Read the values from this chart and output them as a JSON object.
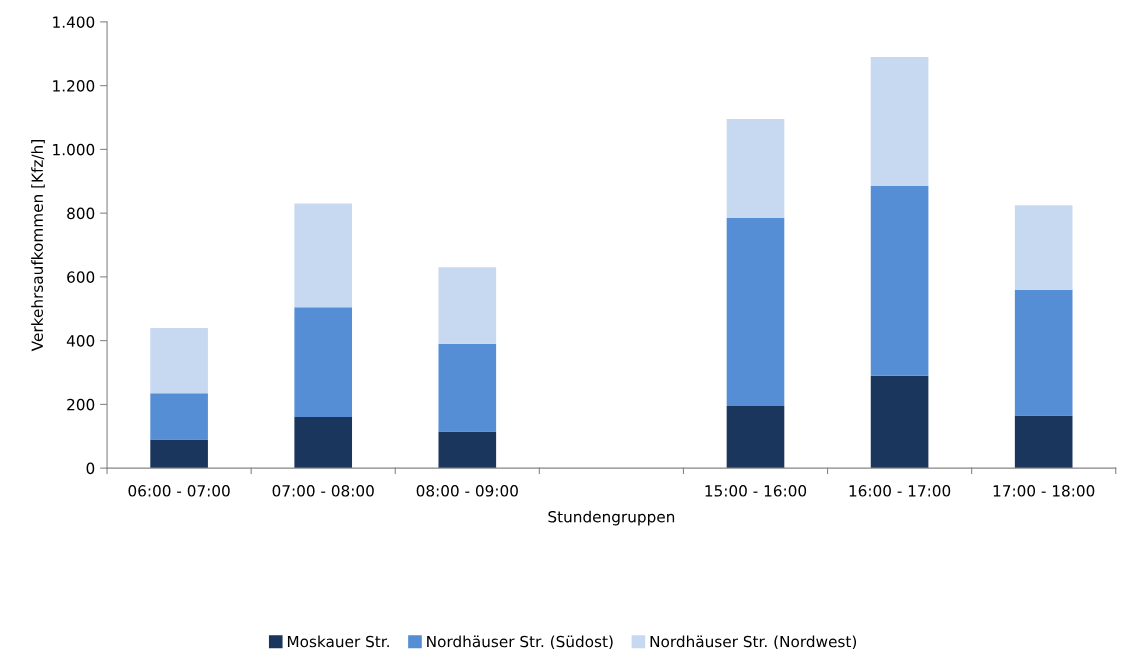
{
  "chart_data": {
    "type": "bar",
    "stacked": true,
    "xlabel": "Stundengruppen",
    "ylabel": "Verkehrsaufkommen [Kfz/h]",
    "categories": [
      "06:00 - 07:00",
      "07:00 - 08:00",
      "08:00 - 09:00",
      null,
      "15:00 - 16:00",
      "16:00 - 17:00",
      "17:00 - 18:00"
    ],
    "series": [
      {
        "name": "Moskauer Str.",
        "color": "#1b365d",
        "values": [
          90,
          160,
          115,
          null,
          195,
          290,
          165
        ]
      },
      {
        "name": "Nordhäuser Str. (Südost)",
        "color": "#558ed5",
        "values": [
          145,
          345,
          275,
          null,
          590,
          595,
          395
        ]
      },
      {
        "name": "Nordhäuser Str. (Nordwest)",
        "color": "#c6d9f1",
        "values": [
          205,
          325,
          240,
          null,
          310,
          405,
          265
        ]
      }
    ],
    "ylim": [
      0,
      1400
    ],
    "yticks": [
      0,
      {
        "value": 200,
        "label": "200"
      },
      {
        "value": 400,
        "label": "400"
      },
      {
        "value": 600,
        "label": "600"
      },
      {
        "value": 800,
        "label": "800"
      },
      {
        "value": 1000,
        "label": "1.000"
      },
      {
        "value": 1200,
        "label": "1.200"
      },
      {
        "value": 1400,
        "label": "1.400"
      }
    ],
    "legend": "bottom"
  }
}
